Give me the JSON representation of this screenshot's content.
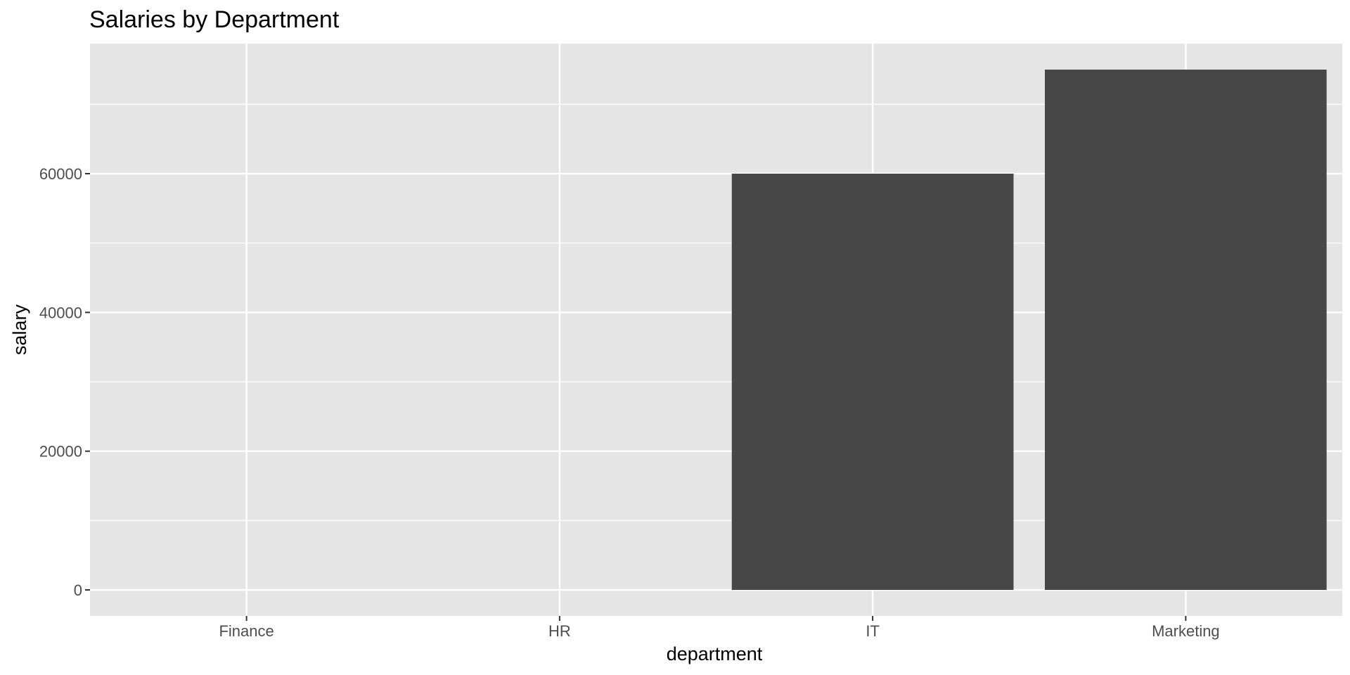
{
  "chart_data": {
    "type": "bar",
    "title": "Salaries by Department",
    "xlabel": "department",
    "ylabel": "salary",
    "categories": [
      "Finance",
      "HR",
      "IT",
      "Marketing"
    ],
    "values": [
      0,
      0,
      60000,
      75000
    ],
    "ylim": [
      0,
      78750
    ],
    "yticks": [
      0,
      20000,
      40000,
      60000
    ],
    "ytick_labels": [
      "0",
      "20000",
      "40000",
      "60000"
    ],
    "grid": true,
    "legend": "none",
    "colors": {
      "panel_background": "#e5e5e5",
      "grid": "#ffffff",
      "bar_fill": "#474747",
      "tick_text": "#4d4d4d",
      "tick_mark": "#333333"
    }
  }
}
